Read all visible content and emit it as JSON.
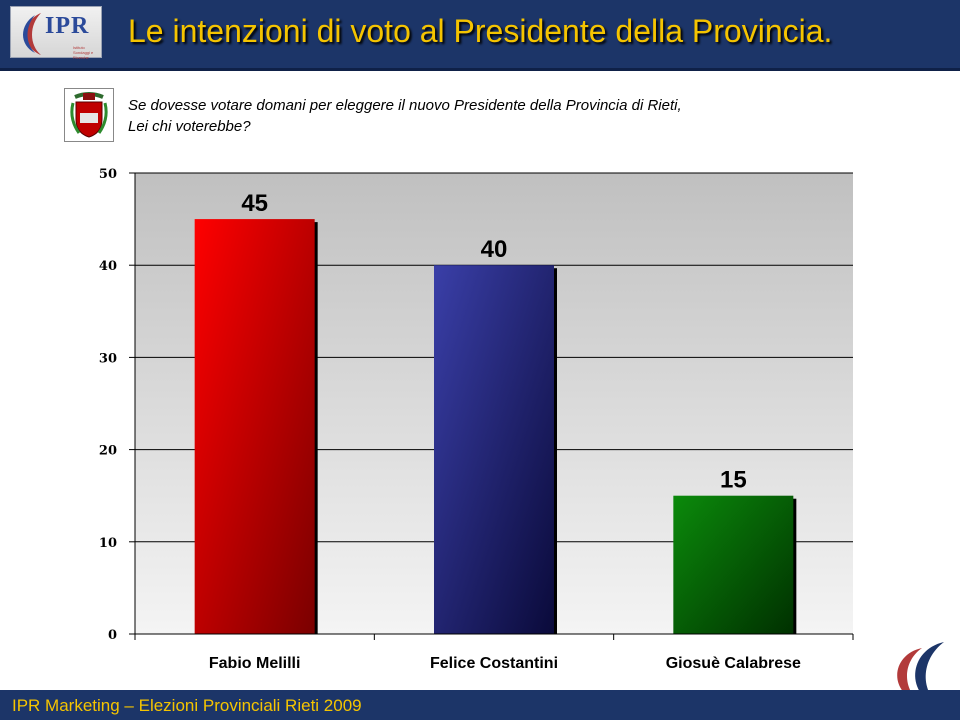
{
  "header": {
    "logo_text": "IPR",
    "logo_subtitle": "Istituto Sondaggi e Ricerche",
    "title": "Le intenzioni di voto al Presidente della Provincia."
  },
  "question": {
    "line1": "Se dovesse votare domani per eleggere il nuovo Presidente della Provincia di Rieti,",
    "line2": "Lei chi voterebbe?"
  },
  "footer": {
    "text": "IPR Marketing – Elezioni Provinciali Rieti 2009"
  },
  "colors": {
    "header_bg": "#1c3568",
    "title_yellow": "#f5c400",
    "bar_red": "#e60000",
    "bar_blue": "#2e3592",
    "bar_green": "#0a7a0a"
  },
  "icons": {
    "crest": "provincia-di-rieti-crest-icon",
    "ipr_logo": "ipr-logo-icon",
    "footer_logo": "ipr-crescent-logo-icon"
  },
  "chart_data": {
    "type": "bar",
    "categories": [
      "Fabio Melilli",
      "Felice Costantini",
      "Giosuè Calabrese"
    ],
    "values": [
      45,
      40,
      15
    ],
    "value_labels": [
      "45",
      "40",
      "15"
    ],
    "bar_colors": [
      "#e60000",
      "#2e3592",
      "#0a7a0a"
    ],
    "yticks": [
      0,
      10,
      20,
      30,
      40,
      50
    ],
    "ylim": [
      0,
      50
    ],
    "title": "",
    "xlabel": "",
    "ylabel": "",
    "grid": true
  }
}
